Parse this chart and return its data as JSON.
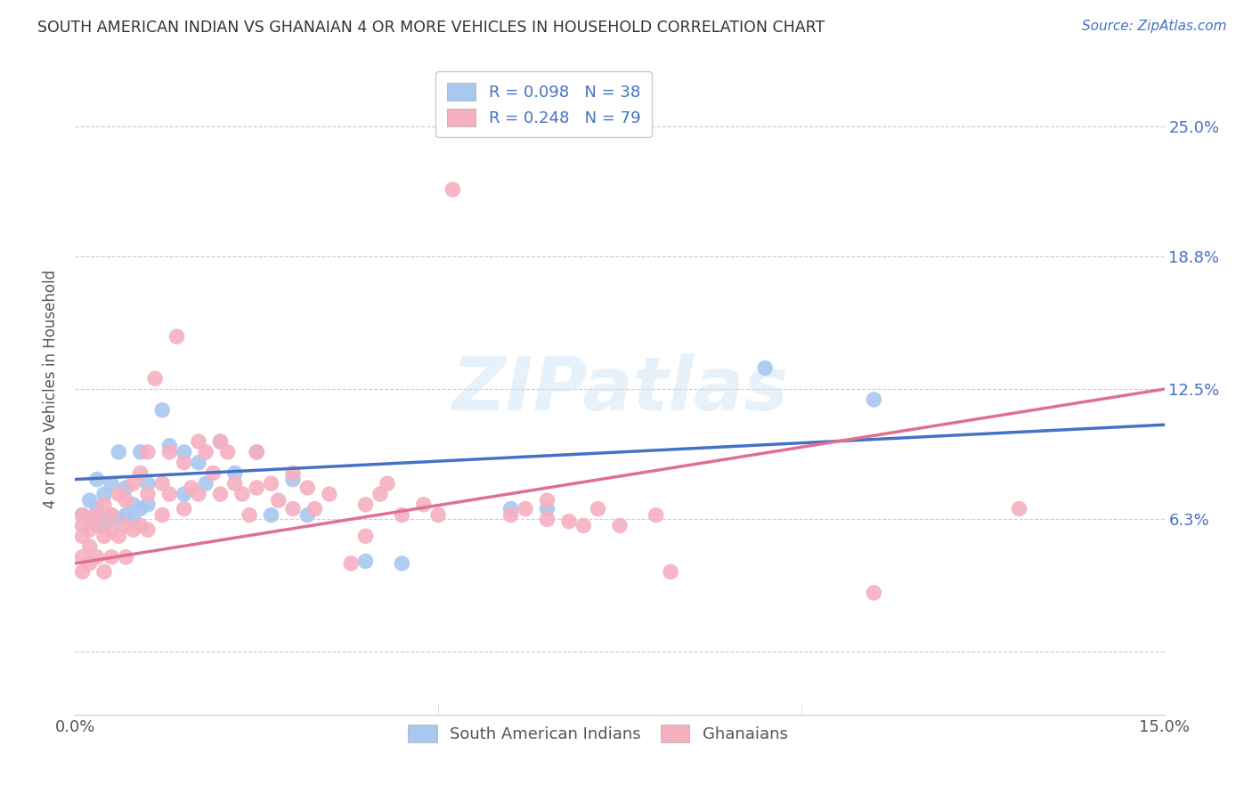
{
  "title": "SOUTH AMERICAN INDIAN VS GHANAIAN 4 OR MORE VEHICLES IN HOUSEHOLD CORRELATION CHART",
  "source": "Source: ZipAtlas.com",
  "ylabel": "4 or more Vehicles in Household",
  "xlim": [
    0.0,
    0.15
  ],
  "ylim": [
    -0.03,
    0.28
  ],
  "xtick_positions": [
    0.0,
    0.05,
    0.1,
    0.15
  ],
  "xticklabels": [
    "0.0%",
    "",
    "",
    "15.0%"
  ],
  "ytick_positions": [
    0.0,
    0.063,
    0.125,
    0.188,
    0.25
  ],
  "ytick_labels_right": [
    "",
    "6.3%",
    "12.5%",
    "18.8%",
    "25.0%"
  ],
  "blue_color": "#A8C8F0",
  "pink_color": "#F5B0C0",
  "blue_line_color": "#4472C4",
  "pink_line_color": "#E07090",
  "legend_R1": "R = 0.098",
  "legend_N1": "N = 38",
  "legend_R2": "R = 0.248",
  "legend_N2": "N = 79",
  "blue_line_start_y": 0.082,
  "blue_line_end_y": 0.108,
  "pink_line_start_y": 0.042,
  "pink_line_end_y": 0.125,
  "background_color": "#FFFFFF",
  "watermark": "ZIPatlas",
  "grid_color": "#CCCCCC",
  "blue_scatter_x": [
    0.001,
    0.002,
    0.002,
    0.003,
    0.003,
    0.003,
    0.004,
    0.004,
    0.005,
    0.005,
    0.006,
    0.006,
    0.007,
    0.007,
    0.008,
    0.008,
    0.009,
    0.009,
    0.01,
    0.01,
    0.012,
    0.013,
    0.015,
    0.015,
    0.017,
    0.018,
    0.02,
    0.022,
    0.025,
    0.027,
    0.03,
    0.032,
    0.04,
    0.045,
    0.06,
    0.065,
    0.095,
    0.11
  ],
  "blue_scatter_y": [
    0.065,
    0.072,
    0.063,
    0.065,
    0.082,
    0.068,
    0.06,
    0.075,
    0.065,
    0.08,
    0.063,
    0.095,
    0.065,
    0.078,
    0.063,
    0.07,
    0.068,
    0.095,
    0.07,
    0.08,
    0.115,
    0.098,
    0.075,
    0.095,
    0.09,
    0.08,
    0.1,
    0.085,
    0.095,
    0.065,
    0.082,
    0.065,
    0.043,
    0.042,
    0.068,
    0.068,
    0.135,
    0.12
  ],
  "pink_scatter_x": [
    0.001,
    0.001,
    0.001,
    0.001,
    0.001,
    0.002,
    0.002,
    0.002,
    0.002,
    0.003,
    0.003,
    0.003,
    0.004,
    0.004,
    0.004,
    0.005,
    0.005,
    0.005,
    0.006,
    0.006,
    0.007,
    0.007,
    0.007,
    0.008,
    0.008,
    0.009,
    0.009,
    0.01,
    0.01,
    0.01,
    0.011,
    0.012,
    0.012,
    0.013,
    0.013,
    0.014,
    0.015,
    0.015,
    0.016,
    0.017,
    0.017,
    0.018,
    0.019,
    0.02,
    0.02,
    0.021,
    0.022,
    0.023,
    0.024,
    0.025,
    0.025,
    0.027,
    0.028,
    0.03,
    0.03,
    0.032,
    0.033,
    0.035,
    0.038,
    0.04,
    0.04,
    0.042,
    0.043,
    0.045,
    0.048,
    0.05,
    0.052,
    0.06,
    0.062,
    0.065,
    0.065,
    0.068,
    0.07,
    0.072,
    0.075,
    0.08,
    0.082,
    0.11,
    0.13
  ],
  "pink_scatter_y": [
    0.065,
    0.06,
    0.055,
    0.045,
    0.038,
    0.063,
    0.058,
    0.05,
    0.042,
    0.06,
    0.065,
    0.045,
    0.07,
    0.055,
    0.038,
    0.065,
    0.058,
    0.045,
    0.075,
    0.055,
    0.072,
    0.06,
    0.045,
    0.08,
    0.058,
    0.085,
    0.06,
    0.095,
    0.075,
    0.058,
    0.13,
    0.08,
    0.065,
    0.095,
    0.075,
    0.15,
    0.09,
    0.068,
    0.078,
    0.1,
    0.075,
    0.095,
    0.085,
    0.1,
    0.075,
    0.095,
    0.08,
    0.075,
    0.065,
    0.095,
    0.078,
    0.08,
    0.072,
    0.085,
    0.068,
    0.078,
    0.068,
    0.075,
    0.042,
    0.07,
    0.055,
    0.075,
    0.08,
    0.065,
    0.07,
    0.065,
    0.22,
    0.065,
    0.068,
    0.072,
    0.063,
    0.062,
    0.06,
    0.068,
    0.06,
    0.065,
    0.038,
    0.028,
    0.068
  ]
}
